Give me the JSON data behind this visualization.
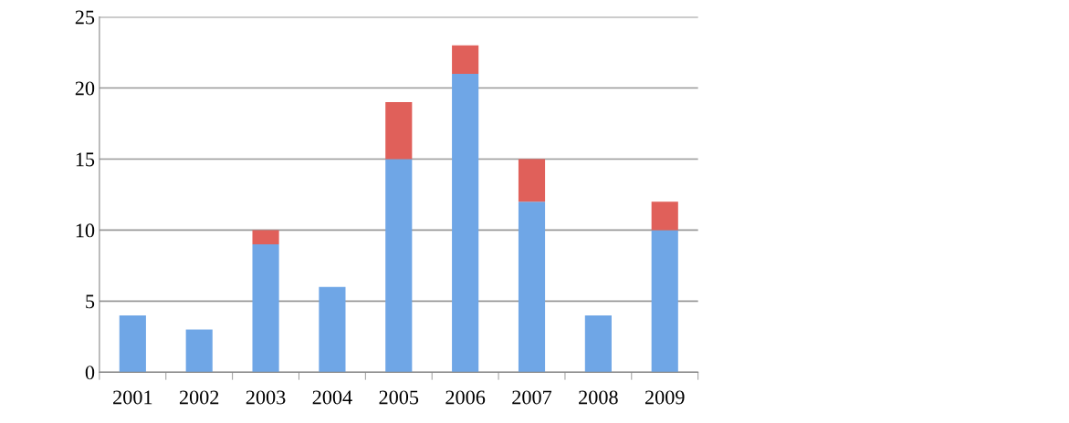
{
  "chart_data": {
    "type": "bar",
    "stacked": true,
    "categories": [
      "2001",
      "2002",
      "2003",
      "2004",
      "2005",
      "2006",
      "2007",
      "2008",
      "2009"
    ],
    "series": [
      {
        "color": "#6fa6e6",
        "values": [
          4,
          3,
          9,
          6,
          15,
          21,
          12,
          4,
          10
        ]
      },
      {
        "color": "#e0605a",
        "values": [
          0,
          0,
          1,
          0,
          4,
          2,
          3,
          0,
          2
        ]
      }
    ],
    "ylim": [
      0,
      25
    ],
    "yticks": [
      0,
      5,
      10,
      15,
      20,
      25
    ],
    "grid": "y"
  }
}
